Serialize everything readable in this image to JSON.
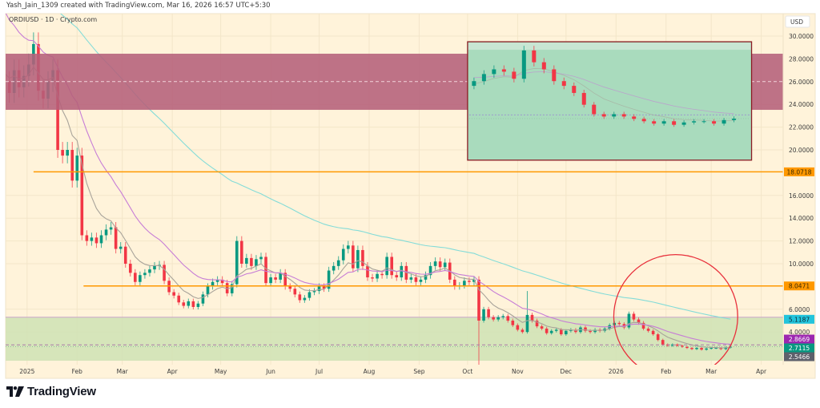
{
  "header": {
    "attribution": "Yash_Jain_1309 created with TradingView.com, Mar 16, 2026 16:57 UTC+5:30"
  },
  "symbol_legend": "ORDIUSD · 1D · Crypto.com",
  "branding": {
    "logo_text": "TradingView"
  },
  "colors": {
    "background": "#fff3da",
    "up": "#089981",
    "down": "#f23645",
    "resistance_zone": "#b5607a",
    "support_zone": "#cfe2b4",
    "level_line": "#ff9800",
    "ma_fast": "#a8a39a",
    "ma_mid": "#c77dd6",
    "ma_slow": "#84dcd8",
    "inset_fill": "#a9dbbd",
    "inset_border": "#8b1c24",
    "circle": "#e8303c"
  },
  "chart_data": {
    "type": "candlestick",
    "symbol": "ORDIUSD",
    "interval": "1D",
    "currency": "USD",
    "y_scale": "linear",
    "ylim": [
      1.0,
      31.0
    ],
    "grid": true,
    "price_axis": {
      "unit_label": "USD",
      "ticks": [
        "30.0000",
        "28.0000",
        "26.0000",
        "24.0000",
        "22.0000",
        "20.0000",
        "16.0000",
        "14.0000",
        "12.0000",
        "10.0000",
        "6.0000",
        "4.0000"
      ],
      "tick_values": [
        30,
        28,
        26,
        24,
        22,
        20,
        16,
        14,
        12,
        10,
        6,
        4
      ]
    },
    "time_axis": {
      "ticks": [
        {
          "label": "2025",
          "date": "2025-01-01"
        },
        {
          "label": "Feb",
          "date": "2025-02-01"
        },
        {
          "label": "Mar",
          "date": "2025-03-01"
        },
        {
          "label": "Apr",
          "date": "2025-04-01"
        },
        {
          "label": "May",
          "date": "2025-05-01"
        },
        {
          "label": "Jun",
          "date": "2025-06-01"
        },
        {
          "label": "Jul",
          "date": "2025-07-01"
        },
        {
          "label": "Aug",
          "date": "2025-08-01"
        },
        {
          "label": "Sep",
          "date": "2025-09-01"
        },
        {
          "label": "Oct",
          "date": "2025-10-01"
        },
        {
          "label": "Nov",
          "date": "2025-11-01"
        },
        {
          "label": "Dec",
          "date": "2025-12-01"
        },
        {
          "label": "2026",
          "date": "2026-01-01"
        },
        {
          "label": "Feb",
          "date": "2026-02-01"
        },
        {
          "label": "Mar",
          "date": "2026-03-01"
        },
        {
          "label": "Apr",
          "date": "2026-04-01"
        }
      ]
    },
    "series_start": "2024-12-18",
    "sample_interval_days": 3,
    "closes": [
      26.0,
      25.0,
      27.0,
      25.5,
      26.5,
      27.5,
      29.3,
      25.2,
      24.5,
      26.0,
      27.0,
      20.0,
      19.5,
      20.0,
      17.3,
      19.5,
      12.5,
      12.0,
      12.3,
      11.8,
      12.5,
      13.0,
      13.2,
      11.3,
      11.5,
      10.0,
      9.2,
      8.4,
      9.0,
      9.2,
      9.5,
      9.8,
      9.9,
      8.5,
      7.5,
      7.2,
      6.6,
      6.3,
      6.7,
      6.2,
      6.5,
      7.3,
      8.0,
      8.4,
      8.6,
      8.3,
      7.4,
      8.2,
      12.0,
      10.0,
      10.5,
      9.8,
      10.4,
      10.6,
      8.3,
      8.8,
      8.6,
      9.2,
      8.0,
      7.8,
      7.3,
      6.8,
      7.0,
      7.5,
      7.6,
      8.0,
      7.8,
      9.4,
      9.8,
      10.3,
      11.3,
      11.6,
      9.6,
      11.2,
      9.8,
      8.8,
      8.7,
      9.1,
      9.0,
      10.6,
      9.0,
      8.8,
      9.8,
      8.6,
      8.8,
      8.4,
      8.6,
      9.0,
      9.8,
      10.2,
      9.7,
      10.1,
      8.6,
      8.0,
      8.1,
      8.5,
      8.4,
      8.6,
      5.0,
      6.0,
      5.3,
      5.1,
      5.3,
      5.4,
      5.0,
      4.6,
      4.2,
      4.0,
      5.5,
      5.0,
      4.5,
      4.3,
      3.9,
      4.1,
      4.2,
      3.8,
      4.1,
      4.2,
      4.0,
      4.4,
      4.1,
      4.0,
      4.2,
      4.1,
      4.3,
      4.6,
      4.8,
      4.7,
      4.4,
      5.6,
      5.1,
      4.8,
      4.3,
      4.1,
      3.8,
      3.3,
      2.9,
      2.8,
      2.9,
      2.8,
      2.7,
      2.6,
      2.5,
      2.6,
      2.45,
      2.55,
      2.6,
      2.6,
      2.5,
      2.65,
      2.7115
    ],
    "notable_wicks": [
      {
        "date": "2025-10-08",
        "low": 1.1
      },
      {
        "date": "2025-11-07",
        "high": 7.6
      },
      {
        "date": "2025-01-06",
        "high": 30.2
      }
    ],
    "price_labels": [
      {
        "value": "18.0718",
        "role": "level",
        "color": "#ff9800",
        "text_color": "#3b2a00"
      },
      {
        "value": "8.0471",
        "role": "level",
        "color": "#ff9800",
        "text_color": "#3b2a00"
      },
      {
        "value": "5.1187",
        "role": "ma_slow",
        "color": "#22c4dc",
        "text_color": "#0d2a33"
      },
      {
        "value": "2.8669",
        "role": "ma_mid",
        "color": "#9c27b0",
        "text_color": "#ffffff"
      },
      {
        "value": "2.7115",
        "role": "last_price",
        "color": "#089981",
        "text_color": "#ffffff"
      },
      {
        "value": "2.5466",
        "role": "ma_fast",
        "color": "#5d606b",
        "text_color": "#ffffff"
      }
    ],
    "drawings": {
      "horizontal_levels": [
        {
          "price": 18.0718,
          "from": "2025-01-05"
        },
        {
          "price": 8.0471,
          "from": "2025-02-05"
        }
      ],
      "resistance_zone": {
        "top": 28.45,
        "bottom": 23.52,
        "mid": 26.0
      },
      "support_zone": {
        "top": 5.3,
        "bottom": 1.48
      },
      "dashed_level": 2.8669,
      "dotted_level": 2.7115,
      "inset_box": {
        "from": "2025-10-01",
        "to": "2026-03-26",
        "top": 29.5,
        "bottom": 19.1
      },
      "circle": {
        "center_date": "2026-02-07",
        "center_price": 5.35,
        "edge_price": 10.8
      }
    }
  }
}
